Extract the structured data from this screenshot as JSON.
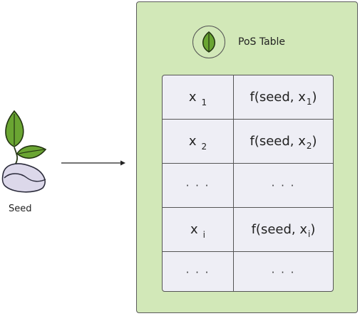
{
  "colors": {
    "panel_fill": "#d2e8b8",
    "table_fill": "#eeeef5",
    "leaf_dark": "#6aa532",
    "leaf_outline": "#223311",
    "seed_fill": "#dcd8ea",
    "border": "#555555"
  },
  "seed": {
    "label": "Seed",
    "icon": "seed-sprout-icon"
  },
  "arrow": {
    "icon": "arrow-right-icon"
  },
  "panel": {
    "title": "PoS Table",
    "icon": "leaf-icon"
  },
  "table": {
    "rows": [
      {
        "x_base": "x",
        "x_sub": "1",
        "f_prefix": "f(seed, x",
        "f_sub": "1",
        "f_suffix": ")"
      },
      {
        "x_base": "x",
        "x_sub": "2",
        "f_prefix": "f(seed, x",
        "f_sub": "2",
        "f_suffix": ")"
      },
      {
        "left_dots": "· · ·",
        "right_dots": "· · ·"
      },
      {
        "x_base": "x",
        "x_sub": "i",
        "f_prefix": "f(seed, x",
        "f_sub": "i",
        "f_suffix": " )"
      },
      {
        "left_dots": "· · ·",
        "right_dots": "· · ·"
      }
    ]
  }
}
